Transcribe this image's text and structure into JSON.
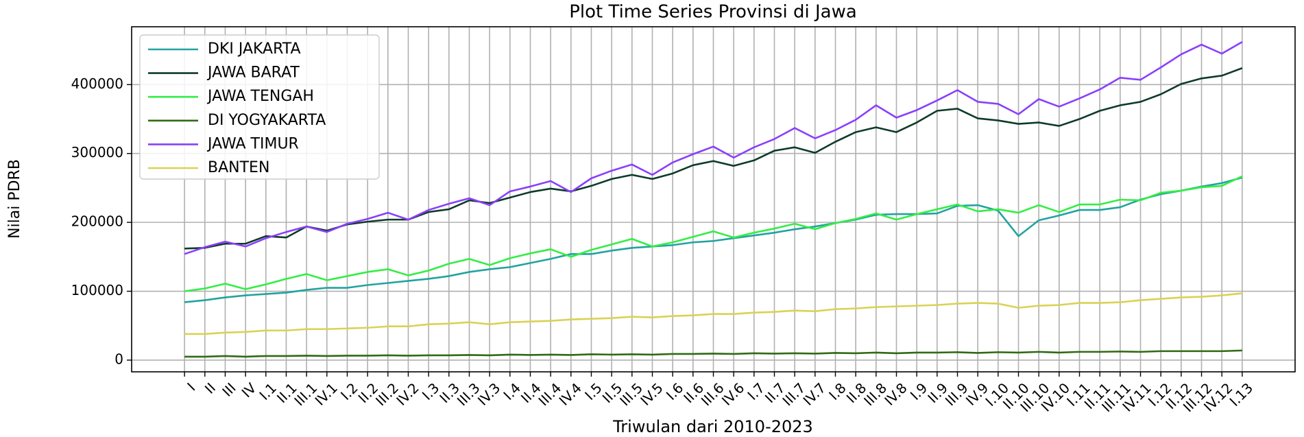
{
  "chart_data": {
    "type": "line",
    "title": "Plot Time Series Provinsi di Jawa",
    "x_label": "Triwulan dari 2010-2023",
    "y_label": "Nilai PDRB",
    "categories": [
      "I",
      "II",
      "III",
      "IV",
      "I.1",
      "II.1",
      "III.1",
      "IV.1",
      "I.2",
      "II.2",
      "III.2",
      "IV.2",
      "I.3",
      "II.3",
      "III.3",
      "IV.3",
      "I.4",
      "II.4",
      "III.4",
      "IV.4",
      "I.5",
      "II.5",
      "III.5",
      "IV.5",
      "I.6",
      "II.6",
      "III.6",
      "IV.6",
      "I.7",
      "II.7",
      "III.7",
      "IV.7",
      "I.8",
      "II.8",
      "III.8",
      "IV.8",
      "I.9",
      "II.9",
      "III.9",
      "IV.9",
      "I.10",
      "II.10",
      "III.10",
      "IV.10",
      "I.11",
      "II.11",
      "III.11",
      "IV.11",
      "I.12",
      "II.12",
      "III.12",
      "IV.12",
      "I.13"
    ],
    "series": [
      {
        "name": "DKI JAKARTA",
        "color": "#22a39f",
        "values": [
          84000,
          87000,
          91000,
          94000,
          96000,
          98000,
          102000,
          105000,
          105000,
          109000,
          112000,
          115000,
          118000,
          122000,
          128000,
          132000,
          135000,
          141000,
          147000,
          154000,
          154000,
          159000,
          163000,
          165000,
          167000,
          171000,
          173000,
          177000,
          181000,
          185000,
          190000,
          194000,
          199000,
          204000,
          211000,
          212000,
          212000,
          213000,
          224000,
          225000,
          217000,
          180000,
          203000,
          210000,
          218000,
          218000,
          222000,
          233000,
          241000,
          246000,
          252000,
          257000,
          265000
        ]
      },
      {
        "name": "JAWA BARAT",
        "color": "#0e3b28",
        "values": [
          162000,
          163000,
          169000,
          169000,
          180000,
          178000,
          194000,
          188000,
          197000,
          201000,
          204000,
          204000,
          215000,
          219000,
          232000,
          228000,
          236000,
          244000,
          249000,
          245000,
          253000,
          263000,
          269000,
          263000,
          271000,
          283000,
          289000,
          282000,
          290000,
          304000,
          309000,
          301000,
          317000,
          331000,
          338000,
          331000,
          345000,
          362000,
          365000,
          351000,
          348000,
          343000,
          345000,
          340000,
          350000,
          362000,
          370000,
          375000,
          386000,
          401000,
          409000,
          413000,
          424000
        ]
      },
      {
        "name": "JAWA TENGAH",
        "color": "#33ee44",
        "values": [
          100000,
          104000,
          111000,
          103000,
          110000,
          118000,
          125000,
          116000,
          122000,
          128000,
          132000,
          123000,
          130000,
          140000,
          147000,
          138000,
          148000,
          155000,
          161000,
          150000,
          160000,
          168000,
          176000,
          165000,
          171000,
          179000,
          187000,
          178000,
          185000,
          191000,
          198000,
          190000,
          199000,
          205000,
          213000,
          204000,
          212000,
          219000,
          226000,
          216000,
          219000,
          214000,
          225000,
          215000,
          226000,
          226000,
          233000,
          232000,
          243000,
          246000,
          251000,
          253000,
          267000
        ]
      },
      {
        "name": "DI YOGYAKARTA",
        "color": "#2f6b12",
        "values": [
          5000,
          5000,
          6000,
          5000,
          6000,
          6000,
          6500,
          6000,
          6500,
          6500,
          7000,
          6500,
          7000,
          7000,
          7500,
          7000,
          8000,
          7500,
          8000,
          7500,
          8500,
          8000,
          8500,
          8000,
          9000,
          9000,
          9500,
          9000,
          10000,
          9500,
          10000,
          9500,
          10500,
          10000,
          11000,
          10000,
          11000,
          11000,
          11500,
          10500,
          11500,
          11000,
          12000,
          11000,
          12000,
          12000,
          12500,
          12000,
          13000,
          13000,
          13000,
          13000,
          14000
        ]
      },
      {
        "name": "JAWA TIMUR",
        "color": "#8a3ffc",
        "values": [
          154000,
          164000,
          172000,
          165000,
          177000,
          186000,
          194000,
          186000,
          198000,
          205000,
          214000,
          204000,
          218000,
          227000,
          235000,
          225000,
          245000,
          252000,
          260000,
          244000,
          264000,
          275000,
          284000,
          269000,
          287000,
          299000,
          310000,
          294000,
          309000,
          321000,
          337000,
          322000,
          334000,
          349000,
          370000,
          352000,
          363000,
          377000,
          392000,
          375000,
          372000,
          357000,
          379000,
          368000,
          380000,
          393000,
          410000,
          407000,
          425000,
          444000,
          458000,
          445000,
          462000
        ]
      },
      {
        "name": "BANTEN",
        "color": "#d9d254",
        "values": [
          38000,
          38000,
          40000,
          41000,
          43000,
          43000,
          45000,
          45000,
          46000,
          47000,
          49000,
          49000,
          52000,
          53000,
          55000,
          52000,
          55000,
          56000,
          57000,
          59000,
          60000,
          61000,
          63000,
          62000,
          64000,
          65000,
          67000,
          67000,
          69000,
          70000,
          72000,
          71000,
          74000,
          75000,
          77000,
          78000,
          79000,
          80000,
          82000,
          83000,
          82000,
          76000,
          79000,
          80000,
          83000,
          83000,
          84000,
          87000,
          89000,
          91000,
          92000,
          94000,
          97000
        ]
      }
    ],
    "ylim": [
      -17000,
      484000
    ],
    "yticks": [
      0,
      100000,
      200000,
      300000,
      400000
    ],
    "grid": true,
    "legend": "upper-left"
  }
}
